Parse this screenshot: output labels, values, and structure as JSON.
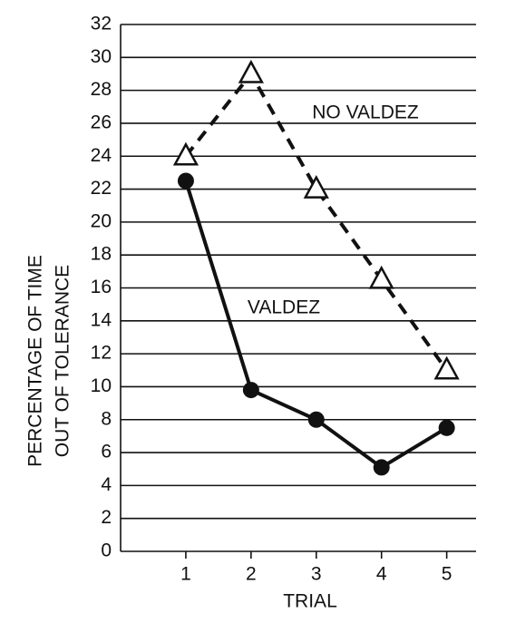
{
  "chart_data": {
    "type": "line",
    "xlabel": "TRIAL",
    "ylabel": [
      "PERCENTAGE OF TIME",
      "OUT OF TOLERANCE"
    ],
    "x": [
      1,
      2,
      3,
      4,
      5
    ],
    "series": [
      {
        "name": "NO VALDEZ",
        "color": "#111111",
        "marker": "triangle",
        "dashed": true,
        "values": [
          24,
          29,
          22,
          16.5,
          11
        ]
      },
      {
        "name": "VALDEZ",
        "color": "#111111",
        "marker": "circle",
        "dashed": false,
        "values": [
          22.5,
          9.8,
          8,
          5.1,
          7.5
        ]
      }
    ],
    "xlim": [
      0,
      5.45
    ],
    "xticks": [
      1,
      2,
      3,
      4,
      5
    ],
    "ylim": [
      0,
      32
    ],
    "yticks": [
      0,
      2,
      4,
      6,
      8,
      10,
      12,
      14,
      16,
      18,
      20,
      22,
      24,
      26,
      28,
      30,
      32
    ],
    "grid": true
  }
}
